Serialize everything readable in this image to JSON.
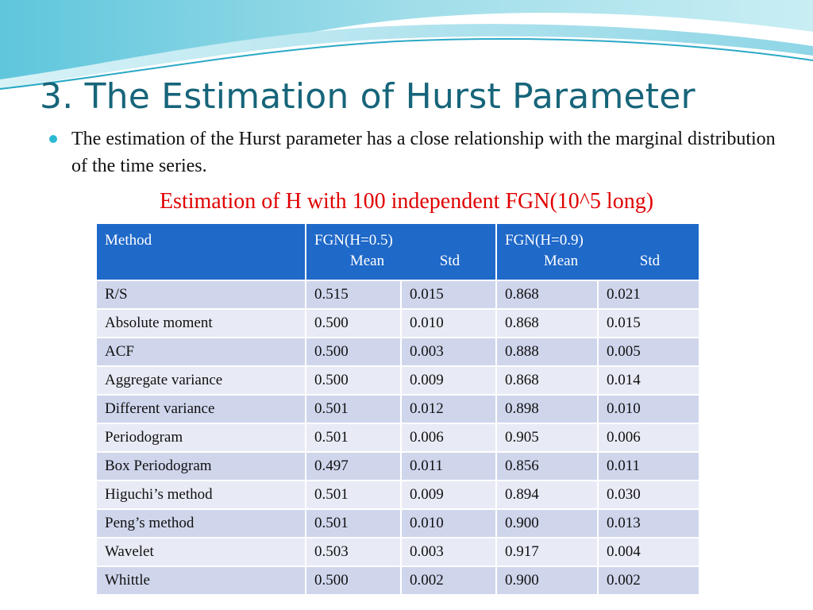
{
  "slide": {
    "title": "3. The Estimation of Hurst Parameter",
    "bullet": "The estimation of the Hurst parameter has a close relationship with the marginal distribution of the time series.",
    "caption": "Estimation of H with 100 independent FGN(10^5 long)"
  },
  "colors": {
    "title": "#17657a",
    "caption": "#e00000",
    "header_bg": "#1f69c9",
    "row_dark": "#cfd6ec",
    "row_light": "#e8ebf5",
    "bullet": "#2bb8d3"
  },
  "table": {
    "header": {
      "method": "Method",
      "group1": {
        "label": "FGN(H=0.5)",
        "mean": "Mean",
        "std": "Std"
      },
      "group2": {
        "label": "FGN(H=0.9)",
        "mean": "Mean",
        "std": "Std"
      }
    },
    "rows": [
      {
        "method": "R/S",
        "m05": "0.515",
        "s05": "0.015",
        "m09": "0.868",
        "s09": "0.021"
      },
      {
        "method": "Absolute moment",
        "m05": "0.500",
        "s05": "0.010",
        "m09": "0.868",
        "s09": "0.015"
      },
      {
        "method": "ACF",
        "m05": "0.500",
        "s05": "0.003",
        "m09": "0.888",
        "s09": "0.005"
      },
      {
        "method": "Aggregate variance",
        "m05": "0.500",
        "s05": "0.009",
        "m09": "0.868",
        "s09": "0.014"
      },
      {
        "method": "Different variance",
        "m05": "0.501",
        "s05": "0.012",
        "m09": "0.898",
        "s09": "0.010"
      },
      {
        "method": "Periodogram",
        "m05": "0.501",
        "s05": "0.006",
        "m09": "0.905",
        "s09": "0.006"
      },
      {
        "method": "Box Periodogram",
        "m05": "0.497",
        "s05": "0.011",
        "m09": "0.856",
        "s09": "0.011"
      },
      {
        "method": "Higuchi’s method",
        "m05": "0.501",
        "s05": "0.009",
        "m09": "0.894",
        "s09": "0.030"
      },
      {
        "method": "Peng’s method",
        "m05": "0.501",
        "s05": "0.010",
        "m09": "0.900",
        "s09": "0.013"
      },
      {
        "method": "Wavelet",
        "m05": "0.503",
        "s05": "0.003",
        "m09": "0.917",
        "s09": "0.004"
      },
      {
        "method": "Whittle",
        "m05": "0.500",
        "s05": "0.002",
        "m09": "0.900",
        "s09": "0.002"
      }
    ]
  }
}
